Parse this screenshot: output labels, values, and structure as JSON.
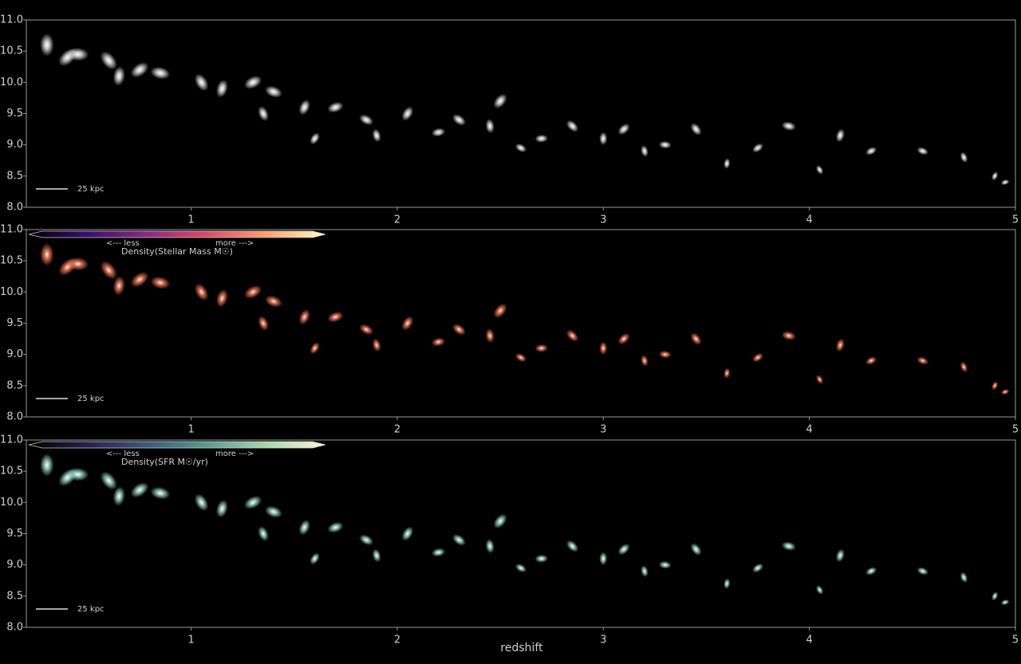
{
  "chart_data": [
    {
      "type": "scatter",
      "color": "#d8d8d8",
      "scale_bar": "25 kpc",
      "xlim": [
        0.2,
        5
      ],
      "xticks": [
        1,
        2,
        3,
        4,
        5
      ],
      "ylim": [
        8,
        11
      ],
      "yticks": [
        {
          "value": 8,
          "label": "8.0"
        },
        8.5,
        {
          "value": 9,
          "label": "9.0"
        },
        9.5,
        {
          "value": 10,
          "label": "10.0"
        },
        10.5,
        {
          "value": 11,
          "label": "11.0"
        }
      ],
      "x": [
        0.3,
        0.4,
        0.45,
        0.6,
        0.65,
        0.75,
        0.85,
        1.05,
        1.15,
        1.3,
        1.4,
        1.35,
        1.55,
        1.7,
        1.85,
        1.9,
        2.05,
        2.2,
        2.3,
        2.45,
        2.5,
        2.7,
        2.85,
        3.0,
        3.1,
        3.3,
        3.45,
        3.6,
        3.75,
        3.9,
        4.05,
        4.15,
        4.3,
        4.55,
        4.75,
        4.9,
        4.95,
        2.6,
        3.2,
        1.6
      ],
      "y": [
        10.6,
        10.4,
        10.45,
        10.35,
        10.1,
        10.2,
        10.15,
        10.0,
        9.9,
        10.0,
        9.85,
        9.5,
        9.6,
        9.6,
        9.4,
        9.15,
        9.5,
        9.2,
        9.4,
        9.3,
        9.7,
        9.1,
        9.3,
        9.1,
        9.25,
        9.0,
        9.25,
        8.7,
        8.95,
        9.3,
        8.6,
        9.15,
        8.9,
        8.9,
        8.8,
        8.5,
        8.4,
        8.95,
        8.9,
        9.1
      ]
    },
    {
      "type": "scatter",
      "color": "#f07a5a",
      "scale_bar": "25 kpc",
      "colorbar": {
        "label": "Density(Stellar Mass M☉)",
        "less": "<--- less",
        "more": "more --->",
        "colors": [
          "#000004",
          "#3b0f70",
          "#8c2981",
          "#de4968",
          "#fe9f6d",
          "#fcfdbf"
        ]
      },
      "xlim": [
        0.2,
        5
      ],
      "xticks": [
        1,
        2,
        3,
        4,
        5
      ],
      "ylim": [
        8,
        11
      ],
      "yticks": [
        {
          "value": 8,
          "label": "8.0"
        },
        8.5,
        {
          "value": 9,
          "label": "9.0"
        },
        9.5,
        {
          "value": 10,
          "label": "10.0"
        },
        10.5,
        {
          "value": 11,
          "label": "11.0"
        }
      ],
      "x": [
        0.3,
        0.4,
        0.45,
        0.6,
        0.65,
        0.75,
        0.85,
        1.05,
        1.15,
        1.3,
        1.4,
        1.35,
        1.55,
        1.7,
        1.85,
        1.9,
        2.05,
        2.2,
        2.3,
        2.45,
        2.5,
        2.7,
        2.85,
        3.0,
        3.1,
        3.3,
        3.45,
        3.6,
        3.75,
        3.9,
        4.05,
        4.15,
        4.3,
        4.55,
        4.75,
        4.9,
        4.95,
        2.6,
        3.2,
        1.6
      ],
      "y": [
        10.6,
        10.4,
        10.45,
        10.35,
        10.1,
        10.2,
        10.15,
        10.0,
        9.9,
        10.0,
        9.85,
        9.5,
        9.6,
        9.6,
        9.4,
        9.15,
        9.5,
        9.2,
        9.4,
        9.3,
        9.7,
        9.1,
        9.3,
        9.1,
        9.25,
        9.0,
        9.25,
        8.7,
        8.95,
        9.3,
        8.6,
        9.15,
        8.9,
        8.9,
        8.8,
        8.5,
        8.4,
        8.95,
        8.9,
        9.1
      ]
    },
    {
      "type": "scatter",
      "color": "#9fd8c8",
      "scale_bar": "25 kpc",
      "x_label": "redshift",
      "colorbar": {
        "label": "Density(SFR M☉/yr)",
        "less": "<--- less",
        "more": "more --->",
        "colors": [
          "#000000",
          "#2a2050",
          "#3c5a7a",
          "#5a9a90",
          "#a8d8a8",
          "#fdf5d8"
        ]
      },
      "xlim": [
        0.2,
        5
      ],
      "xticks": [
        1,
        2,
        3,
        4,
        5
      ],
      "ylim": [
        8,
        11
      ],
      "yticks": [
        {
          "value": 8,
          "label": "8.0"
        },
        8.5,
        {
          "value": 9,
          "label": "9.0"
        },
        9.5,
        {
          "value": 10,
          "label": "10.0"
        },
        10.5,
        {
          "value": 11,
          "label": "11.0"
        }
      ],
      "x": [
        0.3,
        0.4,
        0.45,
        0.6,
        0.65,
        0.75,
        0.85,
        1.05,
        1.15,
        1.3,
        1.4,
        1.35,
        1.55,
        1.7,
        1.85,
        1.9,
        2.05,
        2.2,
        2.3,
        2.45,
        2.5,
        2.7,
        2.85,
        3.0,
        3.1,
        3.3,
        3.45,
        3.6,
        3.75,
        3.9,
        4.05,
        4.15,
        4.3,
        4.55,
        4.75,
        4.9,
        4.95,
        2.6,
        3.2,
        1.6
      ],
      "y": [
        10.6,
        10.4,
        10.45,
        10.35,
        10.1,
        10.2,
        10.15,
        10.0,
        9.9,
        10.0,
        9.85,
        9.5,
        9.6,
        9.6,
        9.4,
        9.15,
        9.5,
        9.2,
        9.4,
        9.3,
        9.7,
        9.1,
        9.3,
        9.1,
        9.25,
        9.0,
        9.25,
        8.7,
        8.95,
        9.3,
        8.6,
        9.15,
        8.9,
        8.9,
        8.8,
        8.5,
        8.4,
        8.95,
        8.9,
        9.1
      ]
    }
  ]
}
